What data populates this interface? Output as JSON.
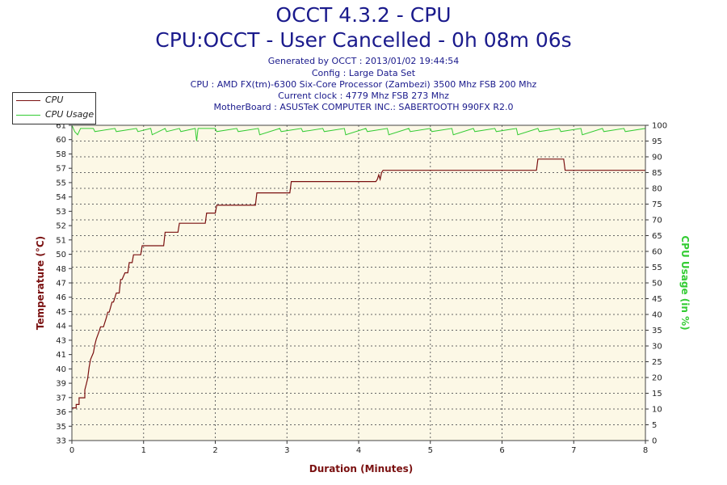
{
  "header": {
    "title": "OCCT 4.3.2 - CPU",
    "subtitle": "CPU:OCCT - User Cancelled - 0h 08m 06s",
    "info": [
      "Generated by OCCT : 2013/01/02 19:44:54",
      "Config : Large Data Set",
      "CPU : AMD FX(tm)-6300 Six-Core Processor (Zambezi) 3500 Mhz FSB 200 Mhz",
      "Current clock : 4779 Mhz FSB 273 Mhz",
      "MotherBoard : ASUSTeK COMPUTER INC.: SABERTOOTH 990FX R2.0"
    ]
  },
  "colors": {
    "cpu": "#7a1010",
    "usage": "#33cc33",
    "plot_bg": "#fcf8e6",
    "grid": "#666666"
  },
  "chart_data": {
    "type": "line",
    "xlabel": "Duration (Minutes)",
    "ylabel": "Temperature (°C)",
    "y2label": "CPU Usage (in %)",
    "xlim": [
      0,
      8
    ],
    "ylim": [
      33,
      61
    ],
    "y2lim": [
      0,
      100
    ],
    "x_ticks": [
      "0",
      "1",
      "2",
      "3",
      "4",
      "5",
      "6",
      "7",
      "8"
    ],
    "y_ticks": [
      "33",
      "35",
      "36",
      "37",
      "39",
      "40",
      "41",
      "43",
      "44",
      "45",
      "46",
      "47",
      "48",
      "50",
      "51",
      "52",
      "53",
      "54",
      "55",
      "57",
      "58",
      "60",
      "61"
    ],
    "y2_ticks": [
      "0",
      "5",
      "10",
      "15",
      "20",
      "25",
      "30",
      "35",
      "40",
      "45",
      "50",
      "55",
      "60",
      "65",
      "70",
      "75",
      "80",
      "85",
      "90",
      "95",
      "100"
    ],
    "legend": {
      "position": "top-left",
      "entries": [
        "CPU",
        "CPU Usage"
      ]
    },
    "grid": true,
    "series": [
      {
        "name": "CPU",
        "axis": "left",
        "x": [
          0,
          0.06,
          0.06,
          0.1,
          0.1,
          0.18,
          0.18,
          0.2,
          0.22,
          0.24,
          0.26,
          0.3,
          0.32,
          0.34,
          0.38,
          0.4,
          0.44,
          0.48,
          0.5,
          0.52,
          0.56,
          0.58,
          0.62,
          0.66,
          0.68,
          0.7,
          0.74,
          0.78,
          0.8,
          0.84,
          0.86,
          0.96,
          0.98,
          1.28,
          1.3,
          1.48,
          1.5,
          1.86,
          1.88,
          2.0,
          2.02,
          2.56,
          2.58,
          3.04,
          3.06,
          4.24,
          4.26,
          4.28,
          4.3,
          4.32,
          4.34,
          6.48,
          6.5,
          6.86,
          6.88,
          8.0
        ],
        "y": [
          35.9,
          35.9,
          36.2,
          36.2,
          36.8,
          36.8,
          37.5,
          38,
          38.5,
          39.5,
          40.2,
          40.8,
          41.5,
          42,
          42.7,
          43.1,
          43.1,
          43.9,
          44.4,
          44.4,
          45.3,
          45.3,
          46.1,
          46.1,
          47.3,
          47.3,
          47.9,
          47.9,
          48.8,
          48.8,
          49.5,
          49.5,
          50.3,
          50.3,
          51.5,
          51.5,
          52.3,
          52.3,
          53.2,
          53.2,
          53.9,
          53.9,
          55,
          55,
          56,
          56,
          56.2,
          56.6,
          56.2,
          56.8,
          57,
          57,
          58,
          58,
          57,
          57
        ]
      },
      {
        "name": "CPU Usage",
        "axis": "right",
        "x": [
          0,
          0.02,
          0.04,
          0.08,
          0.12,
          0.16,
          0.3,
          0.32,
          0.6,
          0.62,
          0.9,
          0.92,
          1.1,
          1.12,
          1.3,
          1.32,
          1.5,
          1.52,
          1.72,
          1.74,
          1.76,
          2.0,
          2.02,
          2.3,
          2.32,
          2.6,
          2.62,
          2.9,
          2.92,
          3.2,
          3.22,
          3.5,
          3.52,
          3.8,
          3.82,
          4.1,
          4.12,
          4.4,
          4.42,
          4.7,
          4.72,
          5.0,
          5.02,
          5.3,
          5.32,
          5.6,
          5.62,
          5.9,
          5.92,
          6.2,
          6.22,
          6.5,
          6.52,
          6.8,
          6.82,
          7.1,
          7.12,
          7.4,
          7.42,
          7.7,
          7.72,
          8.0
        ],
        "y": [
          100,
          99,
          98,
          97,
          99,
          99,
          99,
          98,
          99,
          98,
          99,
          98,
          99,
          97,
          99,
          98,
          99,
          98,
          99,
          95,
          99,
          99,
          98,
          99,
          98,
          99,
          97,
          99,
          98,
          99,
          98,
          99,
          98,
          99,
          97,
          99,
          98,
          99,
          97,
          99,
          98,
          99,
          98,
          99,
          97,
          99,
          98,
          99,
          98,
          99,
          97,
          99,
          98,
          99,
          98,
          99,
          97,
          99,
          98,
          99,
          98,
          99
        ]
      }
    ]
  }
}
